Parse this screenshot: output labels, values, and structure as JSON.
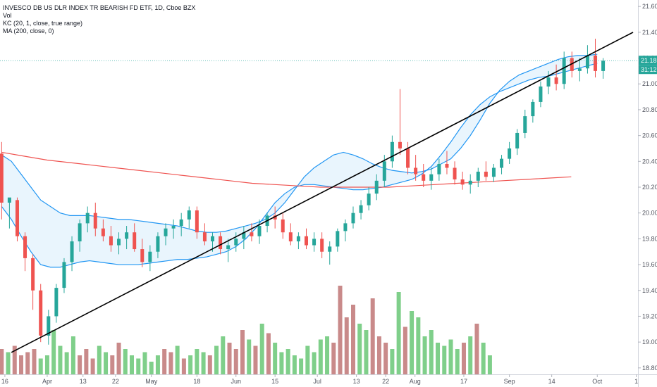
{
  "legend": {
    "title": "INVESCO DB US DLR INDEX TR BEARISH FD ETF, 1D, Cboe BZX",
    "vol": "Vol",
    "kc": "KC (20, 1, close, true range)",
    "ma": "MA (200, close, 0)"
  },
  "badges": {
    "price": "21.18",
    "countdown": "31:12"
  },
  "colors": {
    "up": "#26a69a",
    "down": "#ef5350",
    "up_vol": "#7fcf8a",
    "down_vol": "#c98a8a",
    "kc": "#2196f3",
    "kc_fill": "#e3f2fd",
    "ma": "#ef5350",
    "trend": "#000000",
    "badge_price": "#26a69a",
    "badge_time": "#26a69a"
  },
  "chart_data": {
    "type": "candlestick",
    "y_ticks": [
      "21.60",
      "21.40",
      "21.20",
      "21.00",
      "20.80",
      "20.60",
      "20.40",
      "20.20",
      "20.00",
      "19.80",
      "19.60",
      "19.40",
      "19.20",
      "19.00",
      "18.80"
    ],
    "ylim": [
      18.75,
      21.65
    ],
    "x_ticks": [
      "16",
      "Apr",
      "13",
      "22",
      "May",
      "18",
      "Jun",
      "15",
      "Jul",
      "13",
      "22",
      "Aug",
      "17",
      "Sep",
      "14",
      "Oct",
      "1"
    ],
    "x_tick_index": [
      1,
      14,
      25,
      35,
      46,
      60,
      72,
      84,
      97,
      109,
      118,
      127,
      142,
      156,
      169,
      183,
      195
    ],
    "n_slots": 196,
    "candles": [
      [
        20.46,
        20.55,
        19.95,
        20.08
      ],
      [
        20.08,
        20.11,
        19.88,
        20.12
      ],
      [
        20.1,
        20.12,
        19.78,
        19.82
      ],
      [
        19.82,
        19.85,
        19.55,
        19.65
      ],
      [
        19.65,
        19.68,
        19.25,
        19.4
      ],
      [
        19.4,
        19.45,
        19.0,
        19.05
      ],
      [
        19.05,
        19.25,
        18.98,
        19.2
      ],
      [
        19.2,
        19.45,
        19.15,
        19.42
      ],
      [
        19.42,
        19.65,
        19.38,
        19.62
      ],
      [
        19.62,
        19.82,
        19.55,
        19.78
      ],
      [
        19.78,
        19.95,
        19.7,
        19.92
      ],
      [
        19.92,
        20.05,
        19.85,
        20.0
      ],
      [
        20.0,
        20.08,
        19.82,
        19.88
      ],
      [
        19.88,
        19.95,
        19.78,
        19.82
      ],
      [
        19.82,
        19.9,
        19.7,
        19.75
      ],
      [
        19.75,
        19.85,
        19.68,
        19.8
      ],
      [
        19.8,
        19.9,
        19.72,
        19.85
      ],
      [
        19.85,
        19.92,
        19.7,
        19.72
      ],
      [
        19.72,
        19.8,
        19.58,
        19.62
      ],
      [
        19.62,
        19.75,
        19.55,
        19.7
      ],
      [
        19.7,
        19.85,
        19.65,
        19.82
      ],
      [
        19.82,
        19.92,
        19.75,
        19.88
      ],
      [
        19.88,
        19.95,
        19.8,
        19.9
      ],
      [
        19.9,
        20.0,
        19.82,
        19.95
      ],
      [
        19.95,
        20.05,
        19.88,
        20.02
      ],
      [
        20.02,
        20.05,
        19.8,
        19.85
      ],
      [
        19.85,
        19.92,
        19.75,
        19.78
      ],
      [
        19.78,
        19.85,
        19.7,
        19.82
      ],
      [
        19.82,
        19.85,
        19.68,
        19.72
      ],
      [
        19.72,
        19.8,
        19.62,
        19.75
      ],
      [
        19.75,
        19.85,
        19.7,
        19.8
      ],
      [
        19.8,
        19.9,
        19.72,
        19.85
      ],
      [
        19.85,
        19.92,
        19.78,
        19.82
      ],
      [
        19.82,
        19.95,
        19.76,
        19.9
      ],
      [
        19.9,
        20.0,
        19.85,
        19.98
      ],
      [
        19.98,
        20.05,
        19.88,
        19.95
      ],
      [
        19.95,
        20.0,
        19.8,
        19.85
      ],
      [
        19.85,
        19.92,
        19.75,
        19.78
      ],
      [
        19.78,
        19.85,
        19.72,
        19.82
      ],
      [
        19.82,
        19.88,
        19.72,
        19.75
      ],
      [
        19.75,
        19.85,
        19.7,
        19.8
      ],
      [
        19.8,
        19.85,
        19.65,
        19.7
      ],
      [
        19.7,
        19.78,
        19.6,
        19.74
      ],
      [
        19.74,
        19.88,
        19.7,
        19.86
      ],
      [
        19.86,
        19.95,
        19.78,
        19.92
      ],
      [
        19.92,
        20.05,
        19.88,
        20.0
      ],
      [
        20.0,
        20.1,
        19.95,
        20.06
      ],
      [
        20.06,
        20.2,
        20.02,
        20.15
      ],
      [
        20.15,
        20.3,
        20.1,
        20.25
      ],
      [
        20.25,
        20.45,
        20.2,
        20.4
      ],
      [
        20.4,
        20.6,
        20.35,
        20.55
      ],
      [
        20.55,
        20.96,
        20.45,
        20.5
      ],
      [
        20.5,
        20.55,
        20.3,
        20.35
      ],
      [
        20.35,
        20.45,
        20.25,
        20.3
      ],
      [
        20.3,
        20.38,
        20.2,
        20.25
      ],
      [
        20.25,
        20.35,
        20.18,
        20.3
      ],
      [
        20.3,
        20.42,
        20.25,
        20.38
      ],
      [
        20.38,
        20.48,
        20.3,
        20.35
      ],
      [
        20.35,
        20.4,
        20.22,
        20.26
      ],
      [
        20.26,
        20.32,
        20.18,
        20.22
      ],
      [
        20.22,
        20.3,
        20.15,
        20.25
      ],
      [
        20.25,
        20.35,
        20.2,
        20.32
      ],
      [
        20.32,
        20.4,
        20.25,
        20.28
      ],
      [
        20.28,
        20.38,
        20.24,
        20.35
      ],
      [
        20.35,
        20.45,
        20.3,
        20.42
      ],
      [
        20.42,
        20.55,
        20.38,
        20.5
      ],
      [
        20.5,
        20.65,
        20.45,
        20.62
      ],
      [
        20.62,
        20.8,
        20.58,
        20.75
      ],
      [
        20.75,
        20.88,
        20.7,
        20.86
      ],
      [
        20.86,
        21.02,
        20.82,
        20.98
      ],
      [
        20.98,
        21.1,
        20.92,
        21.05
      ],
      [
        21.05,
        21.15,
        20.95,
        21.0
      ],
      [
        21.0,
        21.25,
        20.96,
        21.2
      ],
      [
        21.2,
        21.25,
        21.05,
        21.1
      ],
      [
        21.1,
        21.2,
        21.02,
        21.12
      ],
      [
        21.12,
        21.3,
        21.08,
        21.22
      ],
      [
        21.22,
        21.35,
        21.05,
        21.1
      ],
      [
        21.1,
        21.2,
        21.04,
        21.18
      ]
    ],
    "kc_upper": [
      20.45,
      20.4,
      20.3,
      20.2,
      20.1,
      20.05,
      20.0,
      19.98,
      19.98,
      19.98,
      19.97,
      19.96,
      19.95,
      19.95,
      19.94,
      19.93,
      19.92,
      19.91,
      19.9,
      19.88,
      19.86,
      19.85,
      19.85,
      19.86,
      19.88,
      19.9,
      19.92,
      19.95,
      20.0,
      20.08,
      20.18,
      20.28,
      20.35,
      20.4,
      20.45,
      20.47,
      20.45,
      20.42,
      20.38,
      20.35,
      20.33,
      20.32,
      20.31,
      20.32,
      20.34,
      20.38,
      20.42,
      20.5,
      20.6,
      20.72,
      20.85,
      20.95,
      21.02,
      21.07,
      21.1,
      21.13,
      21.16,
      21.19,
      21.21,
      21.22,
      21.22,
      21.23
    ],
    "kc_lower": [
      20.05,
      19.95,
      19.82,
      19.7,
      19.6,
      19.58,
      19.58,
      19.6,
      19.62,
      19.63,
      19.62,
      19.61,
      19.6,
      19.6,
      19.6,
      19.61,
      19.62,
      19.63,
      19.64,
      19.64,
      19.65,
      19.66,
      19.68,
      19.7,
      19.74,
      19.8,
      19.88,
      19.98,
      20.08,
      20.15,
      20.2,
      20.22,
      20.22,
      20.21,
      20.2,
      20.19,
      20.18,
      20.18,
      20.19,
      20.2,
      20.22,
      20.24,
      20.26,
      20.3,
      20.36,
      20.45,
      20.55,
      20.66,
      20.76,
      20.84,
      20.9,
      20.94,
      20.97,
      21.0,
      21.03,
      21.05,
      21.06,
      21.08,
      21.1,
      21.12,
      21.14,
      21.16
    ],
    "ma200": [
      20.47,
      20.44,
      20.41,
      20.39,
      20.37,
      20.35,
      20.33,
      20.31,
      20.29,
      20.27,
      20.25,
      20.23,
      20.22,
      20.21,
      20.2,
      20.2,
      20.2,
      20.2,
      20.21,
      20.22,
      20.23,
      20.24,
      20.25,
      20.26,
      20.27,
      20.28
    ],
    "trendline": {
      "from": [
        3,
        18.92
      ],
      "to": [
        194,
        21.4
      ]
    },
    "volume": [
      8,
      7,
      9,
      6,
      7,
      8,
      5,
      6,
      14,
      9,
      7,
      12,
      6,
      8,
      5,
      9,
      7,
      6,
      10,
      8,
      6,
      5,
      7,
      4,
      6,
      8,
      7,
      9,
      5,
      6,
      8,
      7,
      6,
      9,
      12,
      10,
      8,
      14,
      11,
      9,
      16,
      13,
      10,
      7,
      8,
      6,
      5,
      9,
      7,
      11,
      12,
      10,
      28,
      18,
      22,
      16,
      14,
      24,
      12,
      10,
      8,
      26,
      15,
      20,
      18,
      12,
      14,
      10,
      9,
      11,
      8,
      10,
      12,
      16,
      10,
      6
    ]
  }
}
